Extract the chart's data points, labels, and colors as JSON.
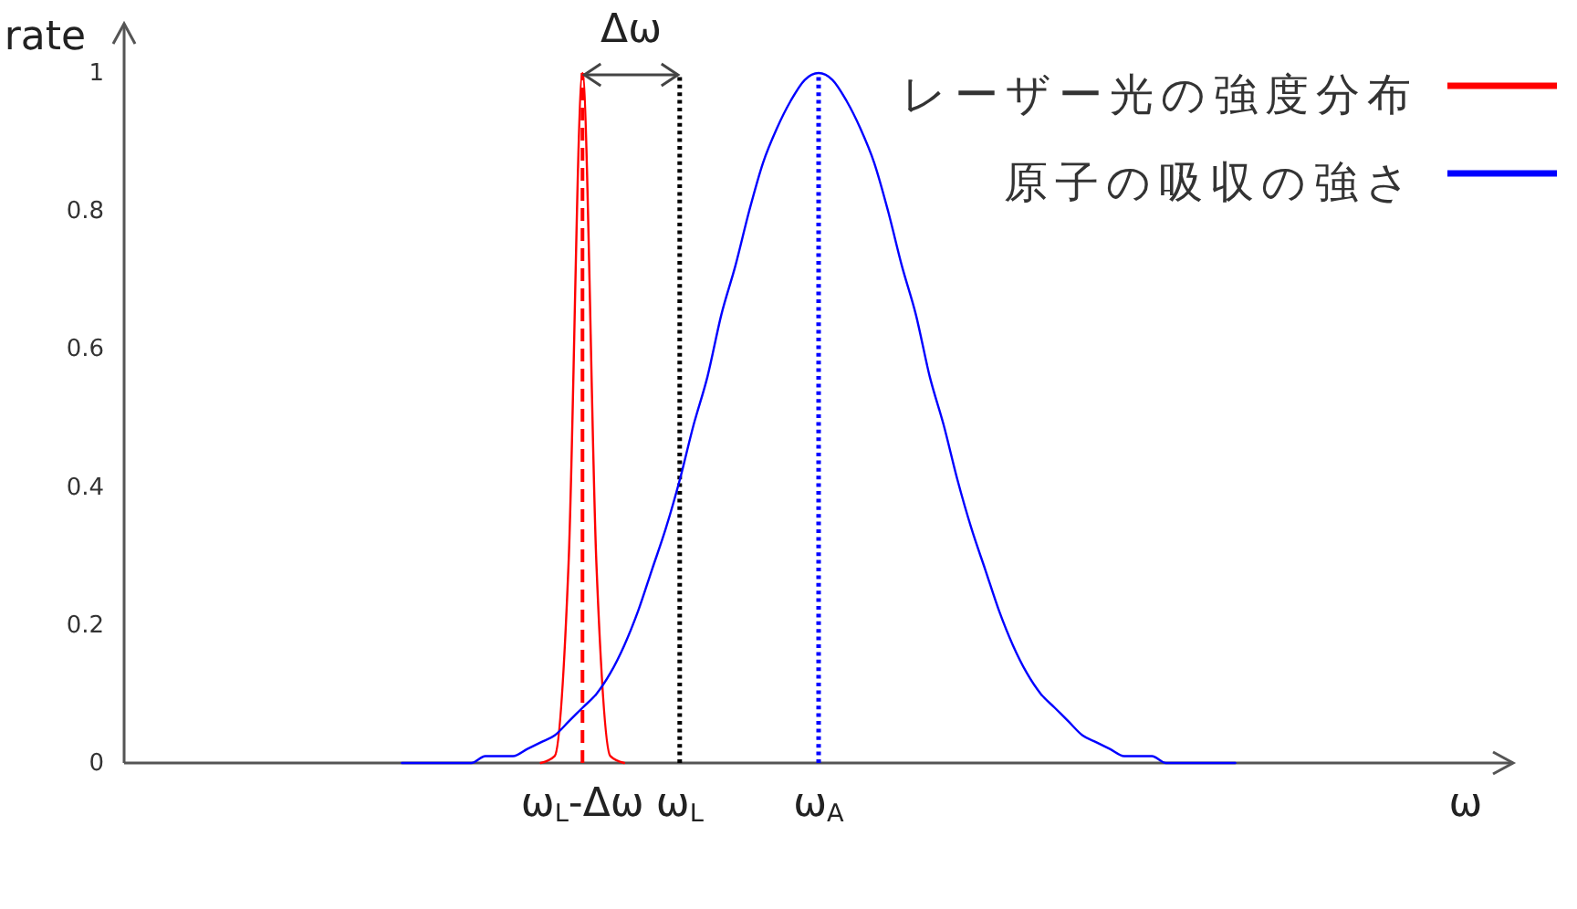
{
  "chart_data": {
    "type": "line",
    "xlabel": "ω",
    "ylabel": "rate",
    "categories": [
      null,
      null,
      null,
      null,
      null,
      null,
      null,
      null,
      null,
      null,
      null,
      null,
      null,
      null,
      null,
      null,
      null,
      null,
      null,
      null,
      null,
      null,
      null,
      null,
      null,
      null,
      null,
      null,
      null,
      null,
      null,
      null,
      null,
      "ω$_{L}$-Δω",
      null,
      null,
      null,
      null,
      null,
      null,
      "ω$_{L}$",
      null,
      null,
      null,
      null,
      null,
      null,
      null,
      null,
      null,
      "ω$_{A}$",
      null,
      null,
      null,
      null,
      null,
      null,
      null,
      null,
      null,
      null,
      null,
      null,
      null,
      null,
      null,
      null,
      null,
      null,
      null,
      null,
      null,
      null,
      null,
      null,
      null,
      null,
      null,
      null,
      null,
      null,
      null,
      null,
      null,
      null,
      null,
      null,
      null,
      null,
      null,
      null,
      null,
      null,
      null,
      null,
      null,
      null,
      null,
      null,
      null,
      null
    ],
    "ylim": [
      0,
      1
    ],
    "yticks": [
      0,
      0.2,
      0.4,
      0.6,
      0.8,
      1
    ],
    "legend": "top right",
    "series": [
      {
        "name": "レーザー光の強度分布",
        "color": "#ff0000",
        "values": [
          null,
          null,
          null,
          null,
          null,
          null,
          null,
          null,
          null,
          null,
          null,
          null,
          null,
          null,
          null,
          null,
          null,
          null,
          null,
          null,
          null,
          null,
          null,
          null,
          null,
          null,
          null,
          null,
          null,
          null,
          0,
          0.01,
          0.29,
          1,
          0.29,
          0.01,
          0,
          null,
          null,
          null,
          null,
          null,
          null,
          null,
          null,
          null,
          null,
          null,
          null,
          null,
          null,
          null,
          null,
          null,
          null,
          null,
          null,
          null,
          null,
          null,
          null,
          null,
          null,
          null,
          null,
          null,
          null,
          null,
          null,
          null,
          null,
          null,
          null,
          null,
          null,
          null,
          null,
          null,
          null,
          null,
          null,
          null,
          null,
          null,
          null,
          null,
          null,
          null,
          null,
          null,
          null,
          null,
          null,
          null,
          null,
          null,
          null,
          null,
          null,
          null,
          null
        ]
      },
      {
        "name": "原子の吸収の強さ",
        "color": "#0000ff",
        "values": [
          null,
          null,
          null,
          null,
          null,
          null,
          null,
          null,
          null,
          null,
          null,
          null,
          null,
          null,
          null,
          null,
          null,
          null,
          null,
          null,
          0,
          0,
          0,
          0,
          0,
          0,
          0.01,
          0.01,
          0.01,
          0.02,
          0.03,
          0.04,
          0.06,
          0.08,
          0.1,
          0.13,
          0.17,
          0.22,
          0.28,
          0.34,
          0.41,
          0.49,
          0.56,
          0.65,
          0.72,
          0.8,
          0.87,
          0.92,
          0.96,
          0.99,
          1,
          0.99,
          0.96,
          0.92,
          0.87,
          0.8,
          0.72,
          0.65,
          0.56,
          0.49,
          0.41,
          0.34,
          0.28,
          0.22,
          0.17,
          0.13,
          0.1,
          0.08,
          0.06,
          0.04,
          0.03,
          0.02,
          0.01,
          0.01,
          0.01,
          0,
          0,
          0,
          0,
          0,
          0,
          null,
          null,
          null,
          null,
          null,
          null,
          null,
          null,
          null,
          null,
          null,
          null,
          null,
          null,
          null,
          null,
          null,
          null,
          null,
          null
        ]
      }
    ],
    "ref_lines": [
      {
        "axis": "x",
        "value": "ω$_{L}$-Δω",
        "color": "#ff0000",
        "line_style": "dashed"
      },
      {
        "axis": "x",
        "value": "ω$_{L}$",
        "color": "#000000",
        "line_style": "dotted"
      },
      {
        "axis": "x",
        "value": "ω$_{A}$",
        "color": "#0000ff",
        "line_style": "dotted"
      }
    ],
    "annotations": [
      "Δω"
    ]
  }
}
